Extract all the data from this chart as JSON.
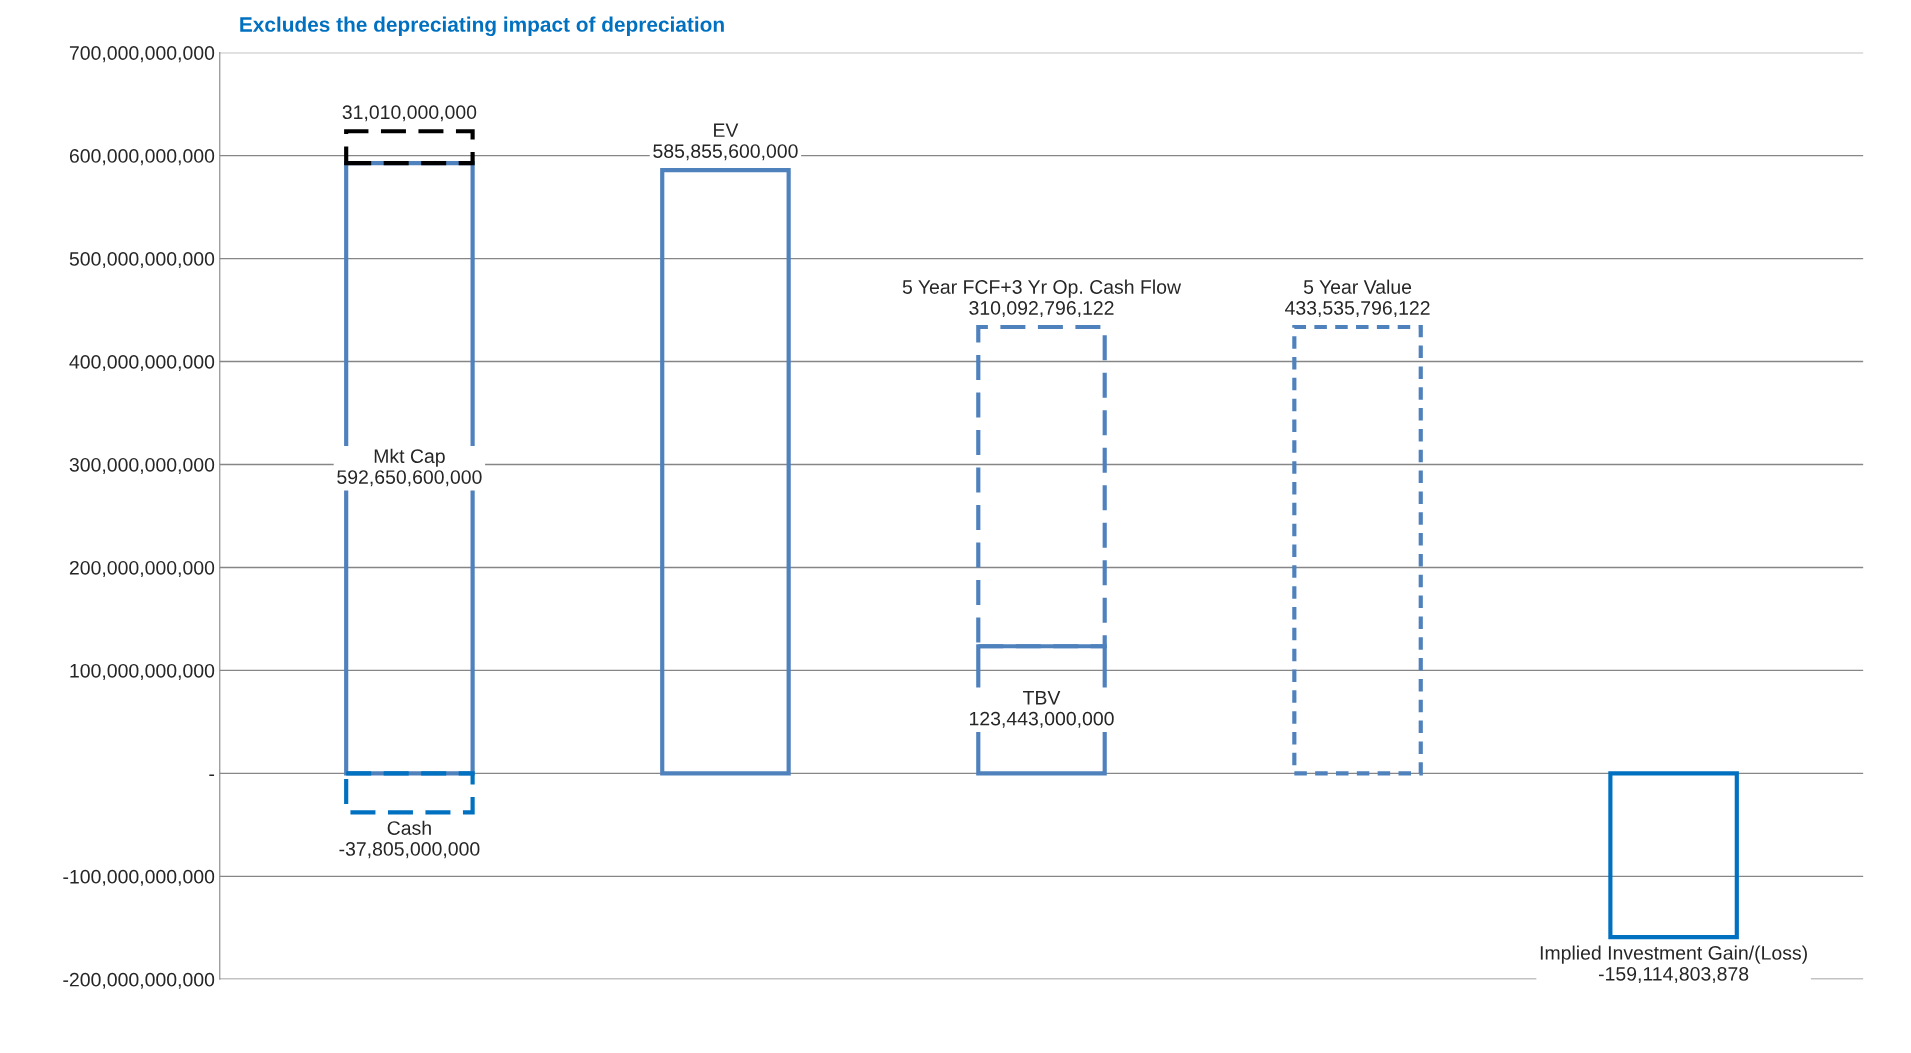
{
  "chart_data": {
    "type": "bar",
    "title": "Excludes the depreciating impact of depreciation",
    "categories": [
      null,
      null,
      null,
      null,
      null
    ],
    "stacked": true,
    "series": [
      {
        "name": "Mkt Cap",
        "color": "#4f81bd",
        "line_style": "solid",
        "values": [
          592650600000,
          null,
          null,
          null,
          null
        ],
        "value_labels": [
          "592,650,600,000",
          null,
          null,
          null,
          null
        ]
      },
      {
        "color": "#000000",
        "line_style": "dashed",
        "values": [
          31010000000,
          null,
          null,
          null,
          null
        ],
        "value_labels": [
          "31,010,000,000",
          null,
          null,
          null,
          null
        ]
      },
      {
        "name": "Cash",
        "color": "#0070c0",
        "line_style": "dashed",
        "values": [
          -37805000000,
          null,
          null,
          null,
          null
        ],
        "value_labels": [
          "-37,805,000,000",
          null,
          null,
          null,
          null
        ]
      },
      {
        "name": "EV",
        "color": "#4f81bd",
        "line_style": "solid",
        "values": [
          null,
          585855600000,
          null,
          null,
          null
        ],
        "value_labels": [
          null,
          "585,855,600,000",
          null,
          null,
          null
        ]
      },
      {
        "name": "TBV",
        "color": "#4f81bd",
        "line_style": "solid",
        "values": [
          null,
          null,
          123443000000,
          null,
          null
        ],
        "value_labels": [
          null,
          null,
          "123,443,000,000",
          null,
          null
        ]
      },
      {
        "name": "5 Year FCF+3 Yr Op. Cash Flow",
        "color": "#4f81bd",
        "line_style": "dashed",
        "values": [
          null,
          null,
          310092796122,
          null,
          null
        ],
        "value_labels": [
          null,
          null,
          "310,092,796,122",
          null,
          null
        ]
      },
      {
        "name": "5 Year Value",
        "color": "#4f81bd",
        "line_style": "dotted",
        "values": [
          null,
          null,
          null,
          433535796122,
          null
        ],
        "value_labels": [
          null,
          null,
          null,
          "433,535,796,122",
          null
        ]
      },
      {
        "name": "Implied Investment Gain/(Loss)",
        "color": "#0070c0",
        "line_style": "solid",
        "values": [
          null,
          null,
          null,
          null,
          -159114803878
        ],
        "value_labels": [
          null,
          null,
          null,
          null,
          "-159,114,803,878"
        ]
      }
    ],
    "ylim": [
      -200000000000,
      700000000000
    ],
    "yticks": [
      {
        "value": -200000000000,
        "label": "-200,000,000,000"
      },
      {
        "value": -100000000000,
        "label": "-100,000,000,000"
      },
      {
        "value": 0,
        "label": "-"
      },
      {
        "value": 100000000000,
        "label": "100,000,000,000"
      },
      {
        "value": 200000000000,
        "label": "200,000,000,000"
      },
      {
        "value": 300000000000,
        "label": "300,000,000,000"
      },
      {
        "value": 400000000000,
        "label": "400,000,000,000"
      },
      {
        "value": 500000000000,
        "label": "500,000,000,000"
      },
      {
        "value": 600000000000,
        "label": "600,000,000,000"
      },
      {
        "value": 700000000000,
        "label": "700,000,000,000"
      }
    ],
    "grid": "y",
    "legend": false,
    "tick_labels": "y"
  }
}
